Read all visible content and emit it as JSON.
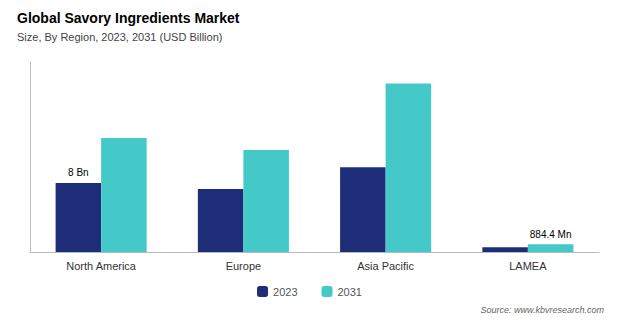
{
  "chart_data": {
    "type": "bar",
    "title": "Global Savory Ingredients Market",
    "subtitle": "Size, By Region, 2023, 2031 (USD Billion)",
    "source": "Source: www.kbvresearch.com",
    "categories": [
      "North America",
      "Europe",
      "Asia Pacific",
      "LAMEA"
    ],
    "series": [
      {
        "name": "2023",
        "color": "#1e2d78",
        "values": [
          8.0,
          7.3,
          9.8,
          0.55
        ]
      },
      {
        "name": "2031",
        "color": "#45c8c8",
        "values": [
          13.2,
          11.8,
          19.5,
          0.884
        ]
      }
    ],
    "annotations": [
      {
        "text": "8 Bn",
        "category": "North America",
        "series": "2023"
      },
      {
        "text": "884.4 Mn",
        "category": "LAMEA",
        "series": "2031"
      }
    ],
    "ylim": [
      0,
      22
    ],
    "grid": false,
    "legend": "bottom",
    "tick_labels": "x"
  }
}
